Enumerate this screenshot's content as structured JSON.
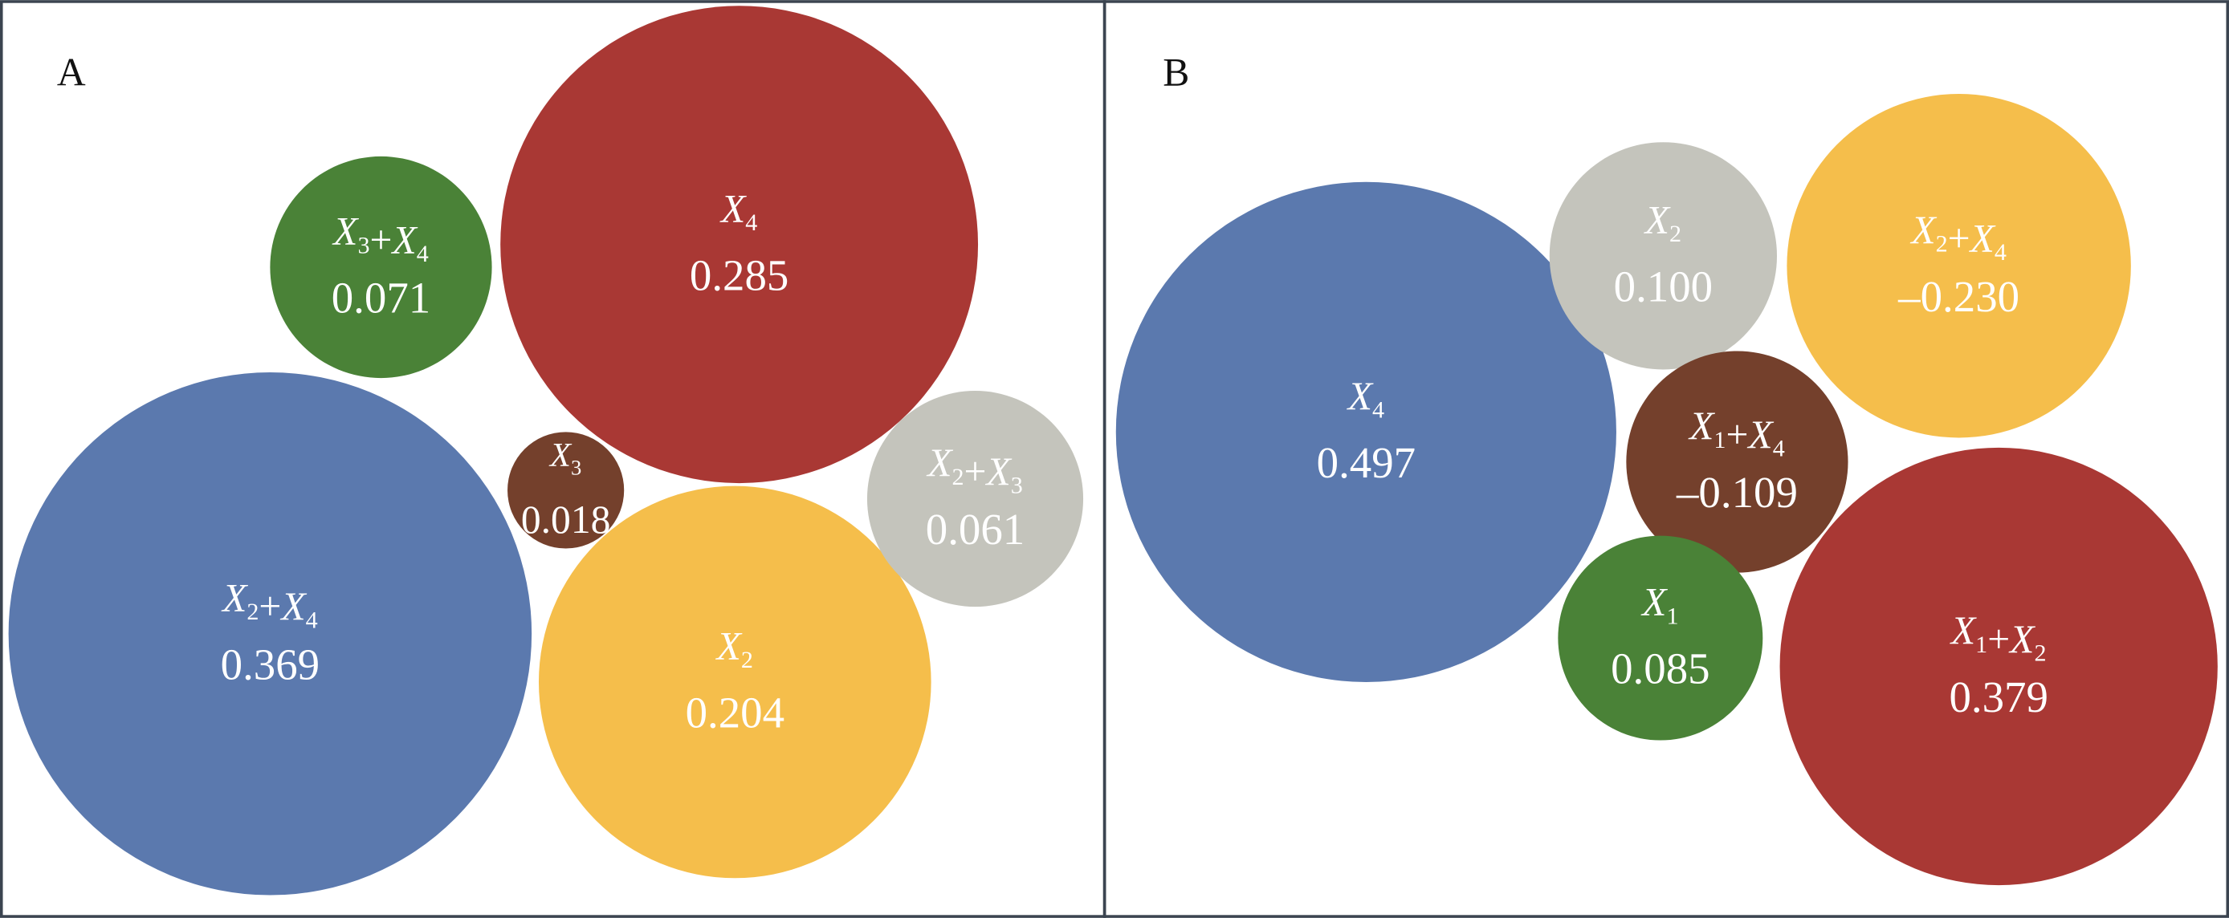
{
  "chart_data": [
    {
      "type": "bubble",
      "panel_label": "A",
      "bubbles": [
        {
          "vars": [
            "X4"
          ],
          "value": "0.285",
          "color": "#a93834"
        },
        {
          "vars": [
            "X3",
            "X4"
          ],
          "value": "0.071",
          "color": "#4a8237"
        },
        {
          "vars": [
            "X2",
            "X4"
          ],
          "value": "0.369",
          "color": "#5b79ae"
        },
        {
          "vars": [
            "X3"
          ],
          "value": "0.018",
          "color": "#74402c"
        },
        {
          "vars": [
            "X2"
          ],
          "value": "0.204",
          "color": "#f5be4b"
        },
        {
          "vars": [
            "X2",
            "X3"
          ],
          "value": "0.061",
          "color": "#c4c4bc"
        }
      ]
    },
    {
      "type": "bubble",
      "panel_label": "B",
      "bubbles": [
        {
          "vars": [
            "X4"
          ],
          "value": "0.497",
          "color": "#5b79ae"
        },
        {
          "vars": [
            "X2"
          ],
          "value": "0.100",
          "color": "#c4c4bc"
        },
        {
          "vars": [
            "X2",
            "X4"
          ],
          "value": "–0.230",
          "color": "#f5be4b"
        },
        {
          "vars": [
            "X1",
            "X4"
          ],
          "value": "–0.109",
          "color": "#74402c"
        },
        {
          "vars": [
            "X1"
          ],
          "value": "0.085",
          "color": "#4a8237"
        },
        {
          "vars": [
            "X1",
            "X2"
          ],
          "value": "0.379",
          "color": "#a93834"
        }
      ]
    }
  ],
  "border_color": "#3b4450"
}
